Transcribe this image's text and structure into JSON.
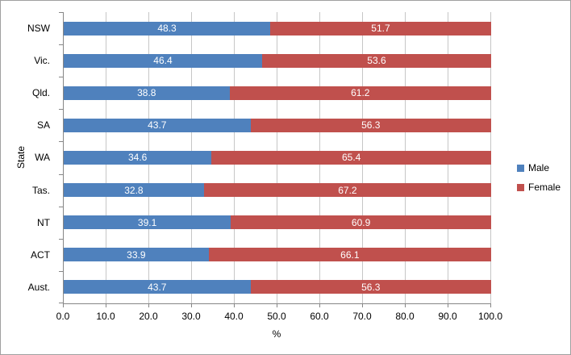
{
  "chart_data": {
    "type": "bar",
    "orientation": "horizontal",
    "stacked": true,
    "title": "",
    "xlabel": "%",
    "ylabel": "State",
    "xlim": [
      0,
      100
    ],
    "xticks": [
      "0.0",
      "10.0",
      "20.0",
      "30.0",
      "40.0",
      "50.0",
      "60.0",
      "70.0",
      "80.0",
      "90.0",
      "100.0"
    ],
    "grid": true,
    "legend_position": "right",
    "categories": [
      "NSW",
      "Vic.",
      "Qld.",
      "SA",
      "WA",
      "Tas.",
      "NT",
      "ACT",
      "Aust."
    ],
    "series": [
      {
        "name": "Male",
        "color": "#4F81BD",
        "values": [
          48.3,
          46.4,
          38.8,
          43.7,
          34.6,
          32.8,
          39.1,
          33.9,
          43.7
        ]
      },
      {
        "name": "Female",
        "color": "#C0504D",
        "values": [
          51.7,
          53.6,
          61.2,
          56.3,
          65.4,
          67.2,
          60.9,
          66.1,
          56.3
        ]
      }
    ]
  }
}
